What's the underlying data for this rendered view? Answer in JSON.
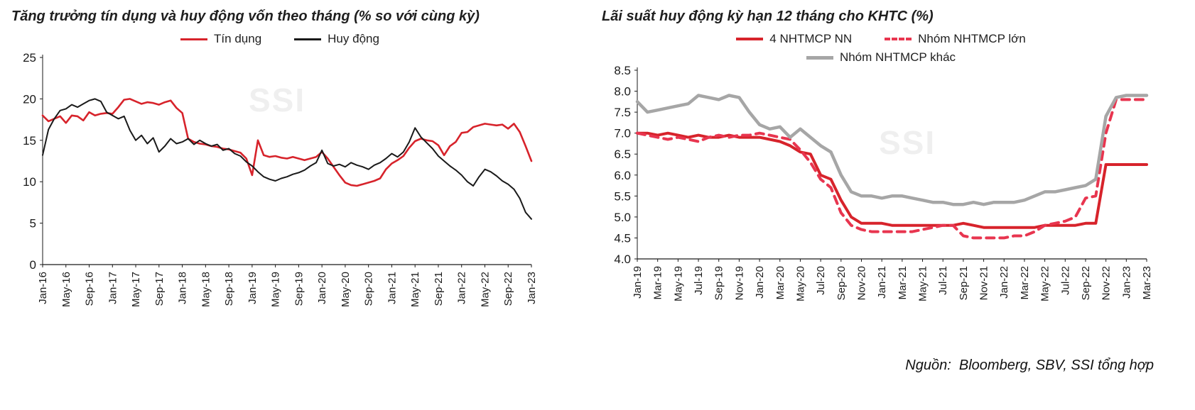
{
  "page": {
    "watermark": "SSI",
    "source_note": "Nguồn:  Bloomberg, SBV, SSI tổng hợp"
  },
  "colors": {
    "red": "#D7232B",
    "red_dashed": "#E8354F",
    "gray": "#A6A6A6",
    "black": "#1A1A1A",
    "watermark_gray": "#EFEFEF",
    "axis": "#1A1A1A"
  },
  "chart_data": [
    {
      "type": "line",
      "title": "Tăng trưởng tín dụng và huy động vốn theo tháng (% so với cùng kỳ)",
      "legend_position": "top",
      "grid": false,
      "ylim": [
        0,
        25
      ],
      "y_tick_labels": [
        "0",
        "5",
        "10",
        "15",
        "20",
        "25"
      ],
      "points_per_tick": 4,
      "x_tick_labels": [
        "Jan-16",
        "May-16",
        "Sep-16",
        "Jan-17",
        "May-17",
        "Sep-17",
        "Jan-18",
        "May-18",
        "Sep-18",
        "Jan-19",
        "May-19",
        "Sep-19",
        "Jan-20",
        "May-20",
        "Sep-20",
        "Jan-21",
        "May-21",
        "Sep-21",
        "Jan-22",
        "May-22",
        "Sep-22",
        "Jan-23"
      ],
      "series": [
        {
          "name": "Tín dụng",
          "color": "#D7232B",
          "width": 2.6,
          "values": [
            18.0,
            17.3,
            17.6,
            17.9,
            17.1,
            18.0,
            17.9,
            17.4,
            18.4,
            18.0,
            18.2,
            18.3,
            18.2,
            19.0,
            19.9,
            20.0,
            19.7,
            19.4,
            19.6,
            19.5,
            19.3,
            19.6,
            19.8,
            18.9,
            18.3,
            15.2,
            14.8,
            14.6,
            14.5,
            14.3,
            14.2,
            14.0,
            13.9,
            13.7,
            13.5,
            12.8,
            10.8,
            15.0,
            13.2,
            13.0,
            13.1,
            12.9,
            12.8,
            13.0,
            12.8,
            12.6,
            12.8,
            13.0,
            13.6,
            12.8,
            11.8,
            10.8,
            9.9,
            9.6,
            9.5,
            9.7,
            9.9,
            10.1,
            10.4,
            11.5,
            12.2,
            12.6,
            13.1,
            14.1,
            14.9,
            15.2,
            15.0,
            14.9,
            14.4,
            13.2,
            14.3,
            14.8,
            15.9,
            16.0,
            16.6,
            16.8,
            17.0,
            16.9,
            16.8,
            16.9,
            16.4,
            17.0,
            16.0,
            14.3,
            12.5
          ]
        },
        {
          "name": "Huy động",
          "color": "#1A1A1A",
          "width": 2.0,
          "values": [
            13.2,
            16.3,
            17.6,
            18.6,
            18.8,
            19.3,
            19.0,
            19.4,
            19.8,
            20.0,
            19.7,
            18.4,
            18.0,
            17.6,
            17.9,
            16.2,
            15.0,
            15.6,
            14.6,
            15.3,
            13.6,
            14.3,
            15.2,
            14.6,
            14.8,
            15.2,
            14.5,
            15.0,
            14.6,
            14.3,
            14.5,
            13.8,
            14.0,
            13.4,
            13.1,
            12.4,
            11.9,
            11.2,
            10.6,
            10.3,
            10.1,
            10.4,
            10.6,
            10.9,
            11.1,
            11.4,
            11.9,
            12.3,
            13.8,
            12.2,
            11.9,
            12.1,
            11.8,
            12.3,
            12.0,
            11.8,
            11.5,
            12.0,
            12.3,
            12.8,
            13.4,
            13.0,
            13.6,
            14.8,
            16.5,
            15.4,
            14.7,
            14.0,
            13.1,
            12.5,
            11.9,
            11.4,
            10.8,
            10.0,
            9.5,
            10.6,
            11.5,
            11.2,
            10.7,
            10.1,
            9.7,
            9.1,
            8.0,
            6.3,
            5.5
          ]
        }
      ]
    },
    {
      "type": "line",
      "title": "Lãi suất huy động kỳ hạn 12 tháng cho KHTC (%)",
      "legend_position": "top",
      "grid": false,
      "ylim": [
        4.0,
        8.5
      ],
      "y_tick_labels": [
        "4.0",
        "4.5",
        "5.0",
        "5.5",
        "6.0",
        "6.5",
        "7.0",
        "7.5",
        "8.0",
        "8.5"
      ],
      "points_per_tick": 2,
      "x_tick_labels": [
        "Jan-19",
        "Mar-19",
        "May-19",
        "Jul-19",
        "Sep-19",
        "Nov-19",
        "Jan-20",
        "Mar-20",
        "May-20",
        "Jul-20",
        "Sep-20",
        "Nov-20",
        "Jan-21",
        "Mar-21",
        "May-21",
        "Jul-21",
        "Sep-21",
        "Nov-21",
        "Jan-22",
        "Mar-22",
        "May-22",
        "Jul-22",
        "Sep-22",
        "Nov-22",
        "Jan-23",
        "Mar-23"
      ],
      "series": [
        {
          "name": "4 NHTMCP NN",
          "color": "#D7232B",
          "width": 4,
          "values": [
            7.0,
            7.0,
            6.95,
            7.0,
            6.95,
            6.9,
            6.95,
            6.9,
            6.9,
            6.95,
            6.9,
            6.9,
            6.9,
            6.85,
            6.8,
            6.7,
            6.55,
            6.5,
            6.0,
            5.9,
            5.4,
            5.0,
            4.85,
            4.85,
            4.85,
            4.8,
            4.8,
            4.8,
            4.8,
            4.8,
            4.8,
            4.8,
            4.85,
            4.8,
            4.75,
            4.75,
            4.75,
            4.75,
            4.75,
            4.75,
            4.8,
            4.8,
            4.8,
            4.8,
            4.85,
            4.85,
            6.25,
            6.25,
            6.25,
            6.25,
            6.25
          ]
        },
        {
          "name": "Nhóm NHTMCP lớn",
          "color": "#E8354F",
          "width": 4,
          "dash": "11,8",
          "values": [
            7.0,
            6.95,
            6.9,
            6.85,
            6.9,
            6.85,
            6.8,
            6.9,
            6.95,
            6.9,
            6.95,
            6.95,
            7.0,
            6.95,
            6.9,
            6.85,
            6.6,
            6.3,
            5.9,
            5.7,
            5.1,
            4.8,
            4.7,
            4.65,
            4.65,
            4.65,
            4.65,
            4.65,
            4.7,
            4.75,
            4.8,
            4.8,
            4.55,
            4.5,
            4.5,
            4.5,
            4.5,
            4.55,
            4.55,
            4.65,
            4.8,
            4.85,
            4.9,
            5.0,
            5.45,
            5.5,
            7.0,
            7.8,
            7.8,
            7.8,
            7.8
          ]
        },
        {
          "name": "Nhóm NHTMCP khác",
          "color": "#A6A6A6",
          "width": 4.5,
          "values": [
            7.75,
            7.5,
            7.55,
            7.6,
            7.65,
            7.7,
            7.9,
            7.85,
            7.8,
            7.9,
            7.85,
            7.5,
            7.2,
            7.1,
            7.15,
            6.9,
            7.1,
            6.9,
            6.7,
            6.55,
            6.0,
            5.6,
            5.5,
            5.5,
            5.45,
            5.5,
            5.5,
            5.45,
            5.4,
            5.35,
            5.35,
            5.3,
            5.3,
            5.35,
            5.3,
            5.35,
            5.35,
            5.35,
            5.4,
            5.5,
            5.6,
            5.6,
            5.65,
            5.7,
            5.75,
            5.9,
            7.4,
            7.85,
            7.9,
            7.9,
            7.9
          ]
        }
      ]
    }
  ]
}
